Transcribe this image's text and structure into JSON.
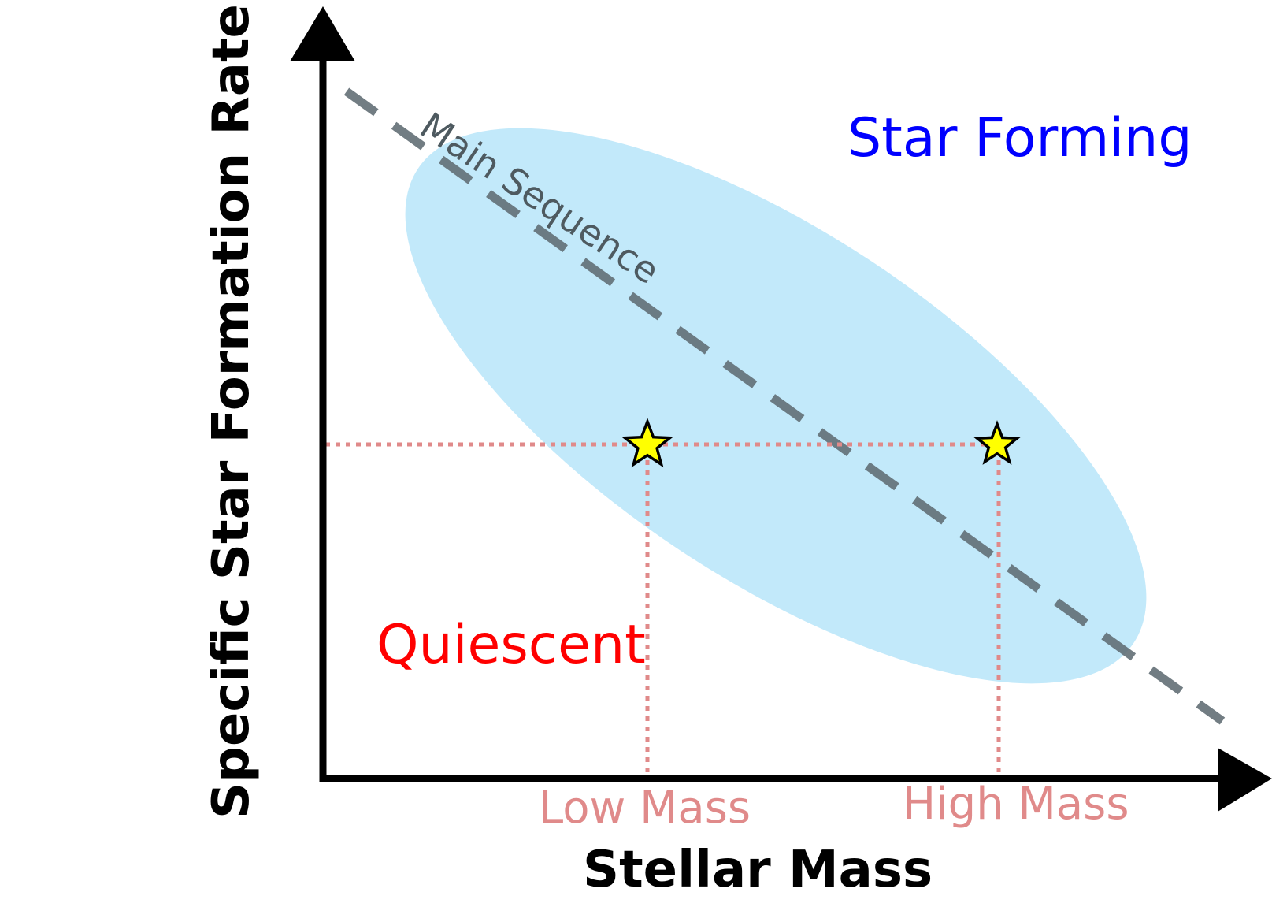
{
  "axes": {
    "xlabel": "Stellar Mass",
    "ylabel": "Specific Star Formation Rate"
  },
  "regions": {
    "star_forming": "Star Forming",
    "quiescent": "Quiescent",
    "main_sequence": "Main Sequence"
  },
  "markers": {
    "low_mass": "Low Mass",
    "high_mass": "High Mass"
  },
  "colors": {
    "axis": "#000000",
    "main_sequence_band": "#c2e9fa",
    "main_sequence_line": "#5f6b72",
    "main_sequence_label": "#4e5a60",
    "guide_lines": "#e08a8a",
    "mass_labels": "#e08a8a",
    "star_forming_label": "#0000ff",
    "quiescent_label": "#ff0000",
    "star_fill": "#ffff00",
    "star_stroke": "#000000"
  },
  "icons": {
    "galaxy_markers": "star-icon",
    "axis_heads": "arrowhead-icon"
  }
}
